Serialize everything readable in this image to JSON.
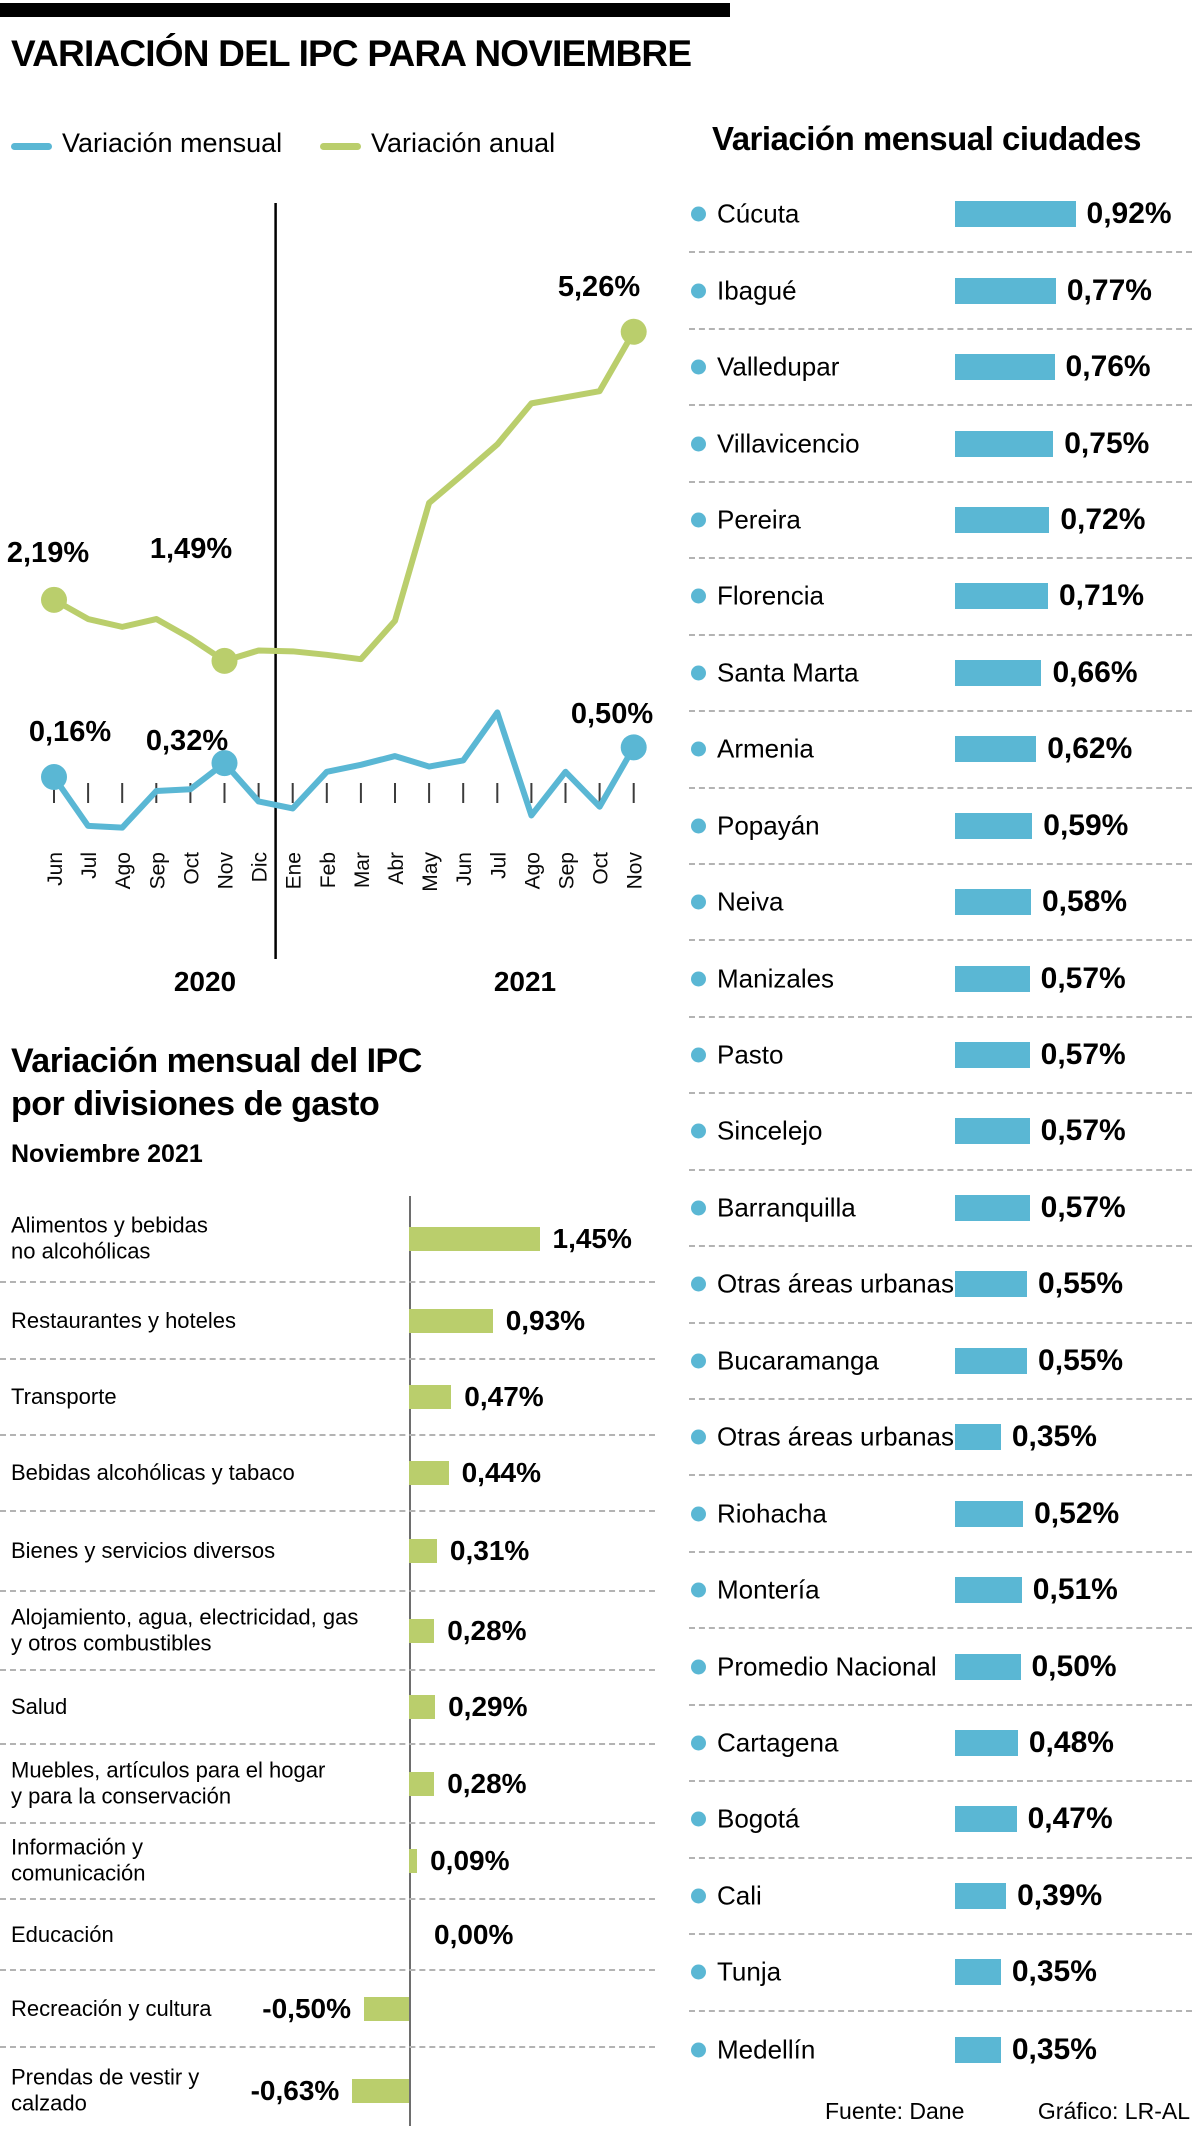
{
  "page": {
    "title": "VARIACIÓN DEL IPC PARA NOVIEMBRE",
    "footer": {
      "source": "Fuente: Dane",
      "credit": "Gráfico: LR-AL"
    }
  },
  "legend": {
    "monthly_label": "Variación mensual",
    "annual_label": "Variación anual"
  },
  "sections": {
    "cities_heading": "Variación mensual ciudades",
    "divisions_heading_line1": "Variación mensual del IPC",
    "divisions_heading_line2": "por divisiones de gasto",
    "divisions_subtitle": "Noviembre 2021"
  },
  "colors": {
    "blue": "#5ab7d4",
    "green": "#bace6c",
    "separator": "#b3b3b3",
    "axis": "#6e6e6e",
    "black": "#000000"
  },
  "chart_data": [
    {
      "id": "ipc_line",
      "type": "line",
      "title": "Variación del IPC para noviembre",
      "x": [
        "Jun",
        "Jul",
        "Ago",
        "Sep",
        "Oct",
        "Nov",
        "Dic",
        "Ene",
        "Feb",
        "Mar",
        "Abr",
        "May",
        "Jun",
        "Jul",
        "Ago",
        "Sep",
        "Oct",
        "Nov"
      ],
      "year_groups": [
        {
          "label": "2020",
          "months": "Jun-Dic"
        },
        {
          "label": "2021",
          "months": "Ene-Nov"
        }
      ],
      "ylim": [
        -0.7,
        5.8
      ],
      "grid": false,
      "series": [
        {
          "name": "Variación mensual",
          "color_key": "blue",
          "values": [
            0.16,
            -0.4,
            -0.42,
            0,
            0.02,
            0.32,
            -0.12,
            -0.2,
            0.22,
            0.3,
            0.4,
            0.28,
            0.35,
            0.9,
            -0.28,
            0.22,
            -0.18,
            0.5
          ],
          "markers": [
            0,
            5,
            17
          ],
          "labels": [
            {
              "index": 0,
              "text": "0,16%"
            },
            {
              "index": 5,
              "text": "0,32%"
            },
            {
              "index": 17,
              "text": "0,50%"
            }
          ]
        },
        {
          "name": "Variación anual",
          "color_key": "green",
          "values": [
            2.19,
            1.97,
            1.88,
            1.97,
            1.75,
            1.49,
            1.61,
            1.6,
            1.56,
            1.51,
            1.95,
            3.3,
            3.63,
            3.97,
            4.44,
            4.51,
            4.58,
            5.26
          ],
          "markers": [
            0,
            5,
            17
          ],
          "labels": [
            {
              "index": 0,
              "text": "2,19%"
            },
            {
              "index": 5,
              "text": "1,49%"
            },
            {
              "index": 17,
              "text": "5,26%"
            }
          ]
        }
      ]
    },
    {
      "id": "cities_bars",
      "type": "bar",
      "orientation": "horizontal",
      "title": "Variación mensual ciudades",
      "categories": [
        "Cúcuta",
        "Ibagué",
        "Valledupar",
        "Villavicencio",
        "Pereira",
        "Florencia",
        "Santa Marta",
        "Armenia",
        "Popayán",
        "Neiva",
        "Manizales",
        "Pasto",
        "Sincelejo",
        "Barranquilla",
        "Otras áreas urbanas",
        "Bucaramanga",
        "Otras áreas urbanas",
        "Riohacha",
        "Montería",
        "Promedio Nacional",
        "Cartagena",
        "Bogotá",
        "Cali",
        "Tunja",
        "Medellín"
      ],
      "values": [
        0.92,
        0.77,
        0.76,
        0.75,
        0.72,
        0.71,
        0.66,
        0.62,
        0.59,
        0.58,
        0.57,
        0.57,
        0.57,
        0.57,
        0.55,
        0.55,
        0.35,
        0.52,
        0.51,
        0.5,
        0.48,
        0.47,
        0.39,
        0.35,
        0.35
      ],
      "value_labels": [
        "0,92%",
        "0,77%",
        "0,76%",
        "0,75%",
        "0,72%",
        "0,71%",
        "0,66%",
        "0,62%",
        "0,59%",
        "0,58%",
        "0,57%",
        "0,57%",
        "0,57%",
        "0,57%",
        "0,55%",
        "0,55%",
        "0,35%",
        "0,52%",
        "0,51%",
        "0,50%",
        "0,48%",
        "0,47%",
        "0,39%",
        "0,35%",
        "0,35%"
      ]
    },
    {
      "id": "divisions_bars",
      "type": "bar",
      "orientation": "horizontal",
      "title": "Variación mensual del IPC por divisiones de gasto",
      "subtitle": "Noviembre 2021",
      "categories": [
        "Alimentos y bebidas no alcohólicas",
        "Restaurantes y hoteles",
        "Transporte",
        "Bebidas alcohólicas y tabaco",
        "Bienes y servicios diversos",
        "Alojamiento, agua, electricidad, gas y otros combustibles",
        "Salud",
        "Muebles, artículos para el hogar y para la conservación",
        "Información y comunicación",
        "Educación",
        "Recreación y cultura",
        "Prendas de vestir y calzado"
      ],
      "category_lines": [
        [
          "Alimentos y bebidas",
          "no alcohólicas"
        ],
        [
          "Restaurantes y hoteles"
        ],
        [
          "Transporte"
        ],
        [
          "Bebidas alcohólicas y tabaco"
        ],
        [
          "Bienes y servicios diversos"
        ],
        [
          "Alojamiento, agua, electricidad, gas",
          "y otros combustibles"
        ],
        [
          "Salud"
        ],
        [
          "Muebles, artículos para el hogar",
          "y para la conservación"
        ],
        [
          "Información y",
          "comunicación"
        ],
        [
          "Educación"
        ],
        [
          "Recreación y cultura"
        ],
        [
          "Prendas de vestir y",
          "calzado"
        ]
      ],
      "values": [
        1.45,
        0.93,
        0.47,
        0.44,
        0.31,
        0.28,
        0.29,
        0.28,
        0.09,
        0.0,
        -0.5,
        -0.63
      ],
      "value_labels": [
        "1,45%",
        "0,93%",
        "0,47%",
        "0,44%",
        "0,31%",
        "0,28%",
        "0,29%",
        "0,28%",
        "0,09%",
        "0,00%",
        "-0,50%",
        "-0,63%"
      ]
    }
  ]
}
